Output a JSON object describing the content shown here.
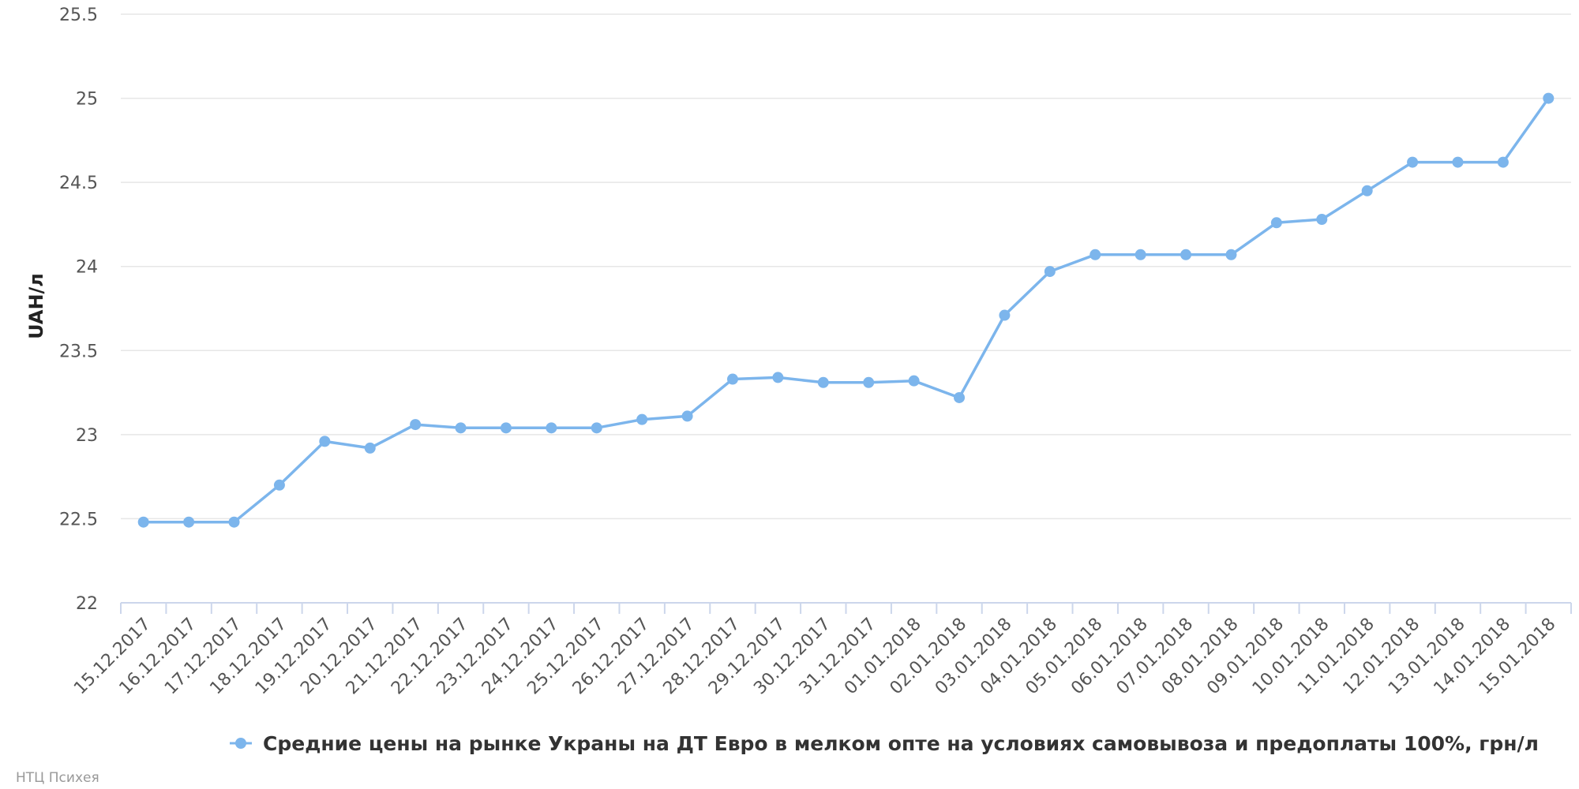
{
  "chart_data": {
    "type": "line",
    "title": "",
    "xlabel": "",
    "ylabel": "UAH/л",
    "ylim": [
      22,
      25.5
    ],
    "y_ticks": [
      "22",
      "22.5",
      "23",
      "23.5",
      "24",
      "24.5",
      "25",
      "25.5"
    ],
    "grid": "horizontal",
    "legend_position": "bottom-center",
    "categories": [
      "15.12.2017",
      "16.12.2017",
      "17.12.2017",
      "18.12.2017",
      "19.12.2017",
      "20.12.2017",
      "21.12.2017",
      "22.12.2017",
      "23.12.2017",
      "24.12.2017",
      "25.12.2017",
      "26.12.2017",
      "27.12.2017",
      "28.12.2017",
      "29.12.2017",
      "30.12.2017",
      "31.12.2017",
      "01.01.2018",
      "02.01.2018",
      "03.01.2018",
      "04.01.2018",
      "05.01.2018",
      "06.01.2018",
      "07.01.2018",
      "08.01.2018",
      "09.01.2018",
      "10.01.2018",
      "11.01.2018",
      "12.01.2018",
      "13.01.2018",
      "14.01.2018",
      "15.01.2018"
    ],
    "series": [
      {
        "name": "Средние цены на рынке Украны на ДТ Евро в мелком опте на условиях самовывоза и предоплаты 100%, грн/л",
        "color": "#7cb5ec",
        "values": [
          22.48,
          22.48,
          22.48,
          22.7,
          22.96,
          22.92,
          23.06,
          23.04,
          23.04,
          23.04,
          23.04,
          23.09,
          23.11,
          23.33,
          23.34,
          23.31,
          23.31,
          23.32,
          23.22,
          23.71,
          23.97,
          24.07,
          24.07,
          24.07,
          24.07,
          24.26,
          24.28,
          24.45,
          24.62,
          24.62,
          24.62,
          25.0
        ]
      }
    ]
  },
  "credits": "НТЦ Психея"
}
